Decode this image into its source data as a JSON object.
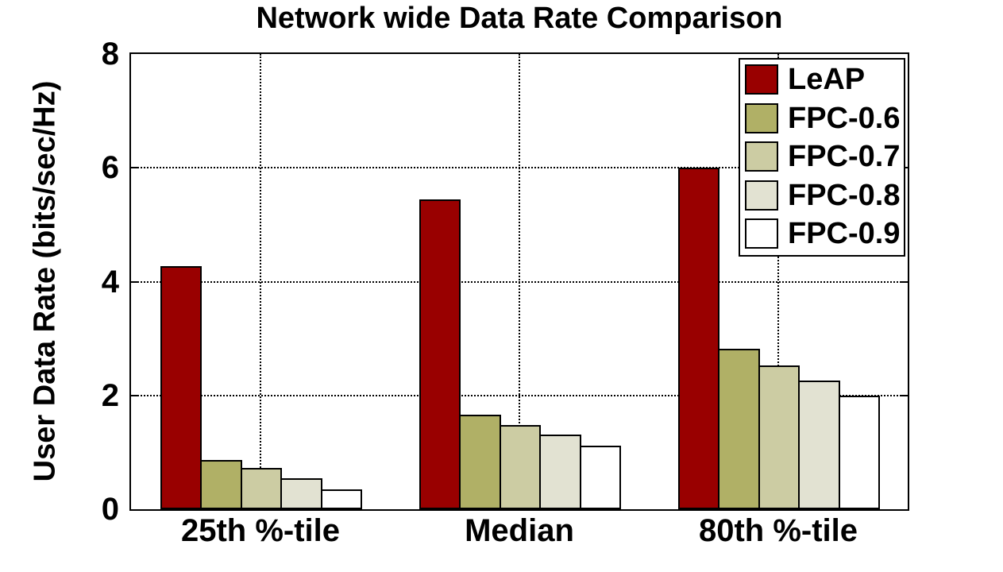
{
  "figure": {
    "background": "#ffffff",
    "text_color": "#000000"
  },
  "chart_data": {
    "type": "bar",
    "title": "Network wide Data Rate Comparison",
    "xlabel": "",
    "ylabel": "User Data Rate (bits/sec/Hz)",
    "categories": [
      "25th %-tile",
      "Median",
      "80th %-tile"
    ],
    "series": [
      {
        "name": "LeAP",
        "color": "#990000",
        "values": [
          4.27,
          5.44,
          6.0
        ]
      },
      {
        "name": "FPC-0.6",
        "color": "#b0b066",
        "values": [
          0.87,
          1.66,
          2.82
        ]
      },
      {
        "name": "FPC-0.7",
        "color": "#cccca3",
        "values": [
          0.73,
          1.48,
          2.53
        ]
      },
      {
        "name": "FPC-0.8",
        "color": "#e2e2d2",
        "values": [
          0.54,
          1.31,
          2.26
        ]
      },
      {
        "name": "FPC-0.9",
        "color": "#ffffff",
        "values": [
          0.35,
          1.12,
          1.99
        ]
      }
    ],
    "ylim": [
      0,
      8
    ],
    "yticks": [
      0,
      2,
      4,
      6,
      8
    ],
    "grid": true,
    "gridline_style": "dotted",
    "bar_edge_color": "#000000",
    "legend_position": "top-right",
    "legend_entries": [
      "LeAP",
      "FPC-0.6",
      "FPC-0.7",
      "FPC-0.8",
      "FPC-0.9"
    ]
  }
}
